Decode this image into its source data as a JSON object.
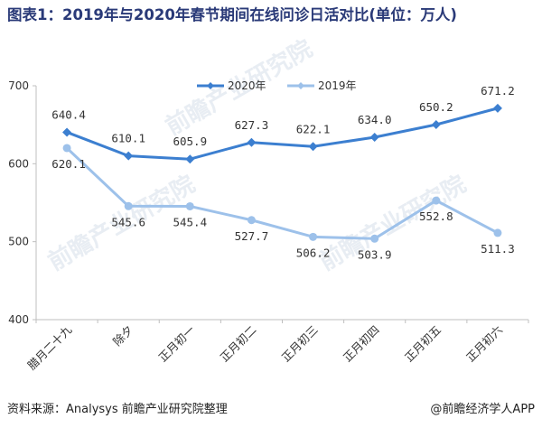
{
  "title": "图表1：2019年与2020年春节期间在线问诊日活对比(单位：万人)",
  "source": "资料来源：Analysys 前瞻产业研究院整理",
  "credit": "@前瞻经济学人APP",
  "watermark": "前瞻产业研究院",
  "colors": {
    "series_2020": "#3c7fd0",
    "series_2019": "#9dc1ea",
    "title": "#2a3a78"
  },
  "chart_data": {
    "type": "line",
    "title": "图表1：2019年与2020年春节期间在线问诊日活对比(单位：万人)",
    "categories": [
      "腊月二十九",
      "除夕",
      "正月初一",
      "正月初二",
      "正月初三",
      "正月初四",
      "正月初五",
      "正月初六"
    ],
    "yticks": [
      400,
      500,
      600,
      700
    ],
    "ylim": [
      400,
      700
    ],
    "grid": false,
    "legend_position": "top-center",
    "series": [
      {
        "name": "2020年",
        "values": [
          640.4,
          610.1,
          605.9,
          627.3,
          622.1,
          634.0,
          650.2,
          671.2
        ],
        "labels": [
          "640.4",
          "610.1",
          "605.9",
          "627.3",
          "622.1",
          "634.0",
          "650.2",
          "671.2"
        ],
        "color": "#3c7fd0"
      },
      {
        "name": "2019年",
        "values": [
          620.1,
          545.6,
          545.4,
          527.7,
          506.2,
          503.9,
          552.8,
          511.3
        ],
        "labels": [
          "620.1",
          "545.6",
          "545.4",
          "527.7",
          "506.2",
          "503.9",
          "552.8",
          "511.3"
        ],
        "color": "#9dc1ea"
      }
    ]
  }
}
